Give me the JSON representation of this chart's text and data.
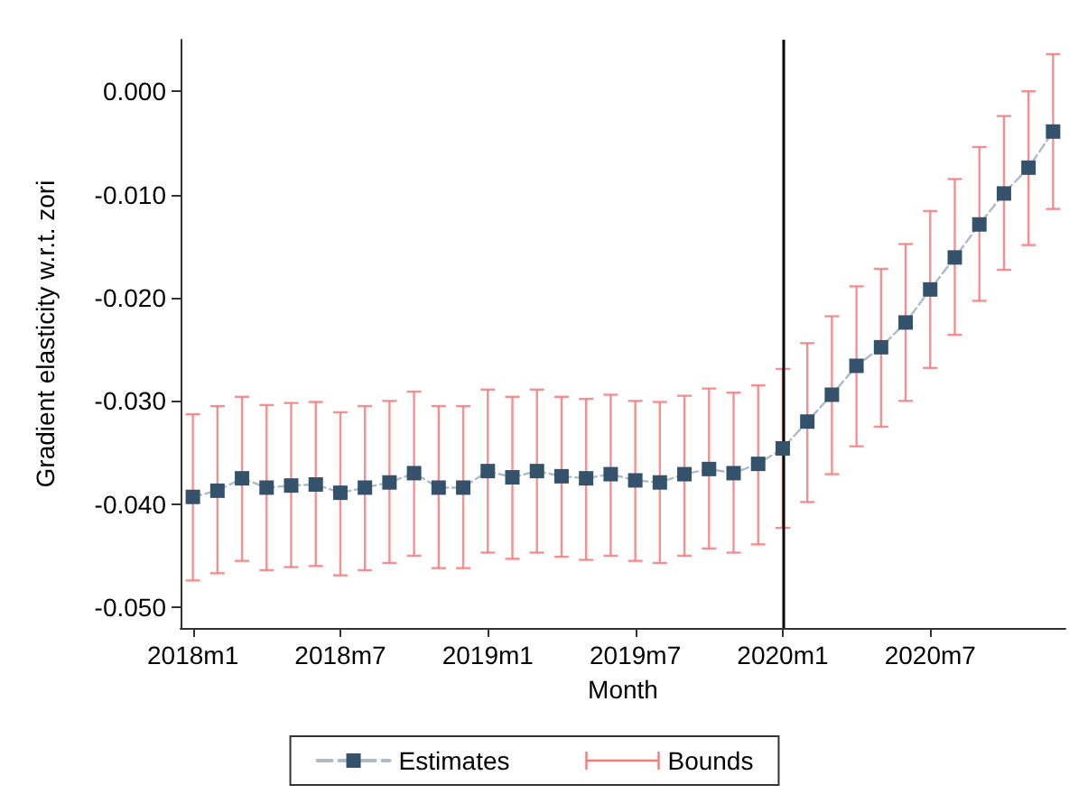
{
  "chart_data": {
    "type": "line",
    "xlabel": "Month",
    "ylabel": "Gradient elasticity w.r.t. zori",
    "categories": [
      "2018m1",
      null,
      null,
      null,
      null,
      null,
      "2018m7",
      null,
      null,
      null,
      null,
      null,
      "2019m1",
      null,
      null,
      null,
      null,
      null,
      "2019m7",
      null,
      null,
      null,
      null,
      null,
      "2020m1",
      null,
      null,
      null,
      null,
      null,
      "2020m7",
      null,
      null,
      null,
      null,
      null
    ],
    "series": [
      {
        "name": "Estimates",
        "color": "#34526b",
        "marker": "square",
        "line_style": "dashed",
        "values": [
          -0.0393,
          -0.0387,
          -0.0375,
          -0.0384,
          -0.0382,
          -0.0381,
          -0.0389,
          -0.0384,
          -0.0379,
          -0.037,
          -0.0384,
          -0.0384,
          -0.0368,
          -0.0374,
          -0.0368,
          -0.0373,
          -0.0375,
          -0.0371,
          -0.0377,
          -0.0379,
          -0.0371,
          -0.0366,
          -0.037,
          -0.0361,
          -0.0346,
          -0.032,
          -0.0294,
          -0.0266,
          -0.0248,
          -0.0224,
          -0.0192,
          -0.0161,
          -0.0129,
          -0.0099,
          -0.0074,
          -0.0039
        ],
        "errors": [
          [
            -0.0474,
            -0.0313
          ],
          [
            -0.0467,
            -0.0305
          ],
          [
            -0.0455,
            -0.0296
          ],
          [
            -0.0464,
            -0.0304
          ],
          [
            -0.0461,
            -0.0302
          ],
          [
            -0.046,
            -0.0301
          ],
          [
            -0.0469,
            -0.0311
          ],
          [
            -0.0464,
            -0.0305
          ],
          [
            -0.0457,
            -0.03
          ],
          [
            -0.045,
            -0.0291
          ],
          [
            -0.0462,
            -0.0305
          ],
          [
            -0.0462,
            -0.0305
          ],
          [
            -0.0447,
            -0.0289
          ],
          [
            -0.0453,
            -0.0296
          ],
          [
            -0.0447,
            -0.0289
          ],
          [
            -0.0451,
            -0.0296
          ],
          [
            -0.0454,
            -0.0298
          ],
          [
            -0.045,
            -0.0294
          ],
          [
            -0.0455,
            -0.03
          ],
          [
            -0.0457,
            -0.0301
          ],
          [
            -0.045,
            -0.0295
          ],
          [
            -0.0443,
            -0.0288
          ],
          [
            -0.0447,
            -0.0292
          ],
          [
            -0.0439,
            -0.0285
          ],
          [
            -0.0423,
            -0.0269
          ],
          [
            -0.0398,
            -0.0244
          ],
          [
            -0.0371,
            -0.0218
          ],
          [
            -0.0344,
            -0.0189
          ],
          [
            -0.0325,
            -0.0172
          ],
          [
            -0.03,
            -0.0148
          ],
          [
            -0.0268,
            -0.0116
          ],
          [
            -0.0236,
            -0.0085
          ],
          [
            -0.0203,
            -0.0054
          ],
          [
            -0.0173,
            -0.0024
          ],
          [
            -0.0149,
            0.0
          ],
          [
            -0.0114,
            0.0036
          ]
        ]
      }
    ],
    "annotations": [
      "Bounds"
    ],
    "ylim": [
      -0.052,
      0.005
    ],
    "yticks": [
      {
        "value": 0,
        "label": "0.000"
      },
      {
        "value": -0.01,
        "label": "-0.010"
      },
      {
        "value": -0.02,
        "label": "-0.020"
      },
      {
        "value": -0.03,
        "label": "-0.030"
      },
      {
        "value": -0.04,
        "label": "-0.040"
      },
      {
        "value": -0.05,
        "label": "-0.050"
      }
    ],
    "ref_lines": [
      {
        "axis": "x",
        "value": "2020m1",
        "color": "#000000",
        "line_style": "solid"
      }
    ],
    "grid": false,
    "legend": "bottom"
  }
}
